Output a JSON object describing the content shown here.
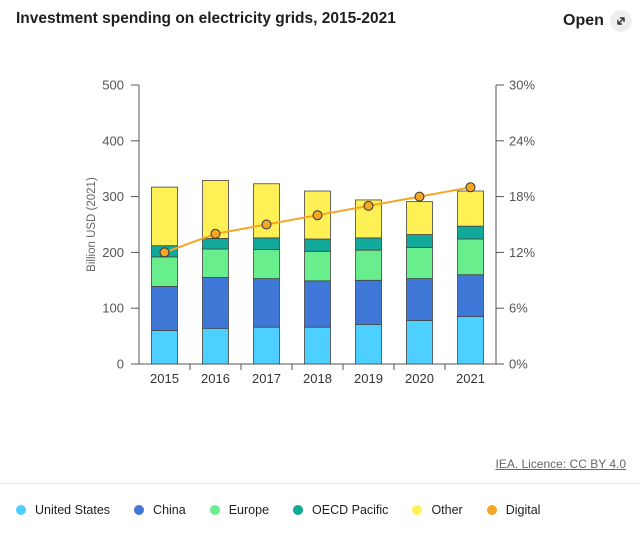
{
  "header": {
    "title": "Investment spending on electricity grids, 2015-2021",
    "open_label": "Open",
    "open_icon": "expand-icon"
  },
  "credit": "IEA. Licence: CC BY 4.0",
  "chart_data": {
    "type": "bar",
    "stacked": true,
    "title": "Investment spending on electricity grids, 2015-2021",
    "categories": [
      "2015",
      "2016",
      "2017",
      "2018",
      "2019",
      "2020",
      "2021"
    ],
    "ylabel": "Billion USD (2021)",
    "ylim": [
      0,
      500
    ],
    "yticks": [
      "0",
      "100",
      "200",
      "300",
      "400",
      "500"
    ],
    "y2lim": [
      0,
      30
    ],
    "y2ticks": [
      "0%",
      "6%",
      "12%",
      "18%",
      "24%",
      "30%"
    ],
    "grid": false,
    "legend_position": "bottom",
    "series": [
      {
        "name": "United States",
        "color": "#4dd0ff",
        "values": [
          60,
          64,
          66,
          66,
          71,
          78,
          85
        ]
      },
      {
        "name": "China",
        "color": "#3f77d6",
        "values": [
          79,
          91,
          87,
          83,
          79,
          75,
          75
        ]
      },
      {
        "name": "Europe",
        "color": "#69ee8e",
        "values": [
          53,
          51,
          52,
          53,
          54,
          56,
          64
        ]
      },
      {
        "name": "OECD Pacific",
        "color": "#11a99a",
        "values": [
          20,
          19,
          21,
          22,
          22,
          23,
          23
        ]
      },
      {
        "name": "Other",
        "color": "#fff055",
        "values": [
          105,
          104,
          97,
          86,
          68,
          59,
          63
        ]
      }
    ],
    "line_series": {
      "name": "Digital",
      "color": "#f5a623",
      "axis": "right",
      "unit": "%",
      "values": [
        12,
        14,
        15,
        16,
        17,
        18,
        19
      ]
    }
  }
}
